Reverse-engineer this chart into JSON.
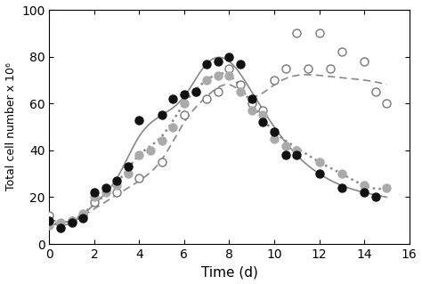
{
  "black_x": [
    0,
    0.5,
    1,
    1.5,
    2,
    2.5,
    3,
    3.5,
    4,
    5,
    5.5,
    6,
    6.5,
    7,
    7.5,
    8,
    8.5,
    9,
    9.5,
    10,
    10.5,
    11,
    12,
    13,
    14,
    14.5
  ],
  "black_y": [
    10,
    7,
    9,
    11,
    22,
    24,
    27,
    33,
    53,
    55,
    62,
    64,
    65,
    77,
    78,
    80,
    77,
    62,
    52,
    48,
    38,
    38,
    30,
    24,
    22,
    20
  ],
  "gray_x": [
    0,
    0.5,
    1,
    1.5,
    2,
    2.5,
    3,
    3.5,
    4,
    4.5,
    5,
    5.5,
    6,
    6.5,
    7,
    7.5,
    8,
    8.5,
    9,
    9.5,
    10,
    10.5,
    11,
    12,
    13,
    14,
    15
  ],
  "gray_y": [
    8,
    9,
    10,
    13,
    20,
    22,
    25,
    30,
    38,
    40,
    44,
    50,
    60,
    65,
    70,
    72,
    72,
    65,
    57,
    55,
    45,
    42,
    40,
    35,
    30,
    25,
    24
  ],
  "open_x": [
    0,
    1,
    1.5,
    2,
    3,
    4,
    5,
    6,
    7,
    7.5,
    8,
    8.5,
    9,
    9.5,
    10,
    10.5,
    11,
    11.5,
    12,
    12.5,
    13,
    14,
    14.5,
    15
  ],
  "open_y": [
    12,
    10,
    12,
    18,
    22,
    28,
    35,
    55,
    62,
    65,
    75,
    68,
    60,
    57,
    70,
    75,
    90,
    75,
    90,
    75,
    82,
    78,
    65,
    60
  ],
  "black_curve_x": [
    0,
    0.5,
    1,
    2,
    3,
    4,
    5,
    6,
    7,
    8,
    9,
    10,
    11,
    12,
    13,
    14,
    15
  ],
  "black_curve_y": [
    9,
    8,
    9,
    17,
    28,
    46,
    55,
    63,
    77,
    78,
    65,
    50,
    38,
    30,
    25,
    22,
    20
  ],
  "gray_curve_x": [
    0,
    0.5,
    1,
    2,
    3,
    4,
    5,
    6,
    7,
    8,
    9,
    10,
    11,
    12,
    13,
    14,
    15
  ],
  "gray_curve_y": [
    8,
    9,
    10,
    17,
    26,
    38,
    46,
    60,
    70,
    72,
    60,
    48,
    41,
    35,
    30,
    25,
    24
  ],
  "open_curve_x": [
    0,
    1,
    2,
    3,
    4,
    5,
    6,
    7,
    8,
    9,
    10,
    11,
    12,
    13,
    14,
    15
  ],
  "open_curve_y": [
    11,
    10,
    15,
    21,
    27,
    36,
    52,
    63,
    68,
    63,
    68,
    72,
    72,
    71,
    70,
    68
  ],
  "xlabel": "Time (d)",
  "ylabel": "Total cell number x 10⁶",
  "xlim": [
    0,
    16
  ],
  "ylim": [
    0,
    100
  ],
  "xticks": [
    0,
    2,
    4,
    6,
    8,
    10,
    12,
    14,
    16
  ],
  "yticks": [
    0,
    20,
    40,
    60,
    80,
    100
  ],
  "black_color": "#111111",
  "gray_color": "#aaaaaa",
  "line_color": "#888888",
  "marker_size": 6.5,
  "open_edge_color": "#777777"
}
